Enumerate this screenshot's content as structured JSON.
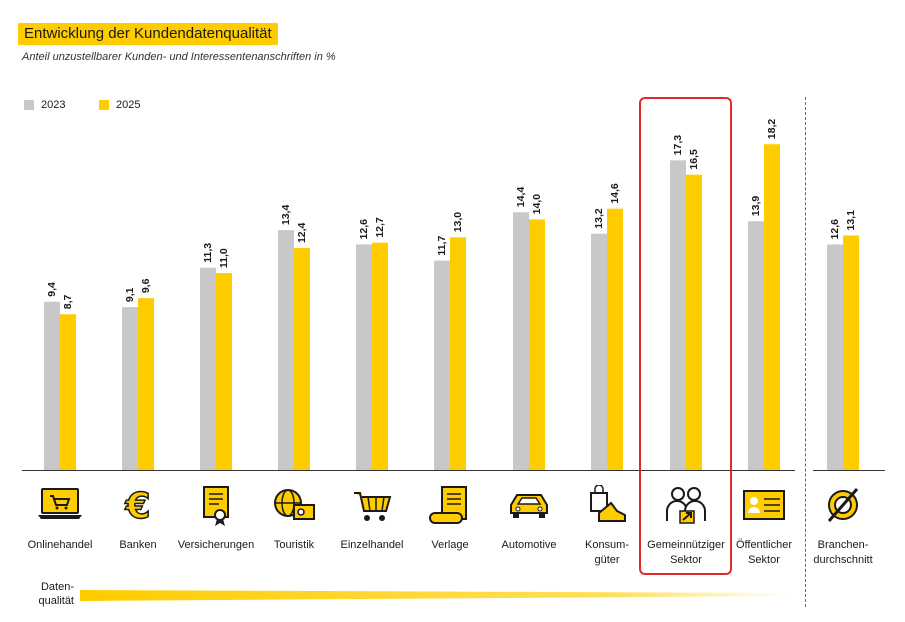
{
  "header": {
    "title": "Entwicklung der Kundendatenqualität",
    "subtitle": "Anteil unzustellbarer Kunden- und Interessentenanschriften in %"
  },
  "colors": {
    "y2023": "#c8c8c8",
    "y2025": "#ffcc00",
    "highlight": "#e32a2a"
  },
  "chart_data": {
    "type": "bar",
    "categories": [
      "Onlinehandel",
      "Banken",
      "Versicherungen",
      "Touristik",
      "Einzelhandel",
      "Verlage",
      "Automotive",
      "Konsumgüter",
      "Gemeinnütziger Sektor",
      "Öffentlicher Sektor",
      "Branchendurchschnitt"
    ],
    "series": [
      {
        "name": "2023",
        "values": [
          9.4,
          9.1,
          11.3,
          13.4,
          12.6,
          11.7,
          14.4,
          13.2,
          17.3,
          13.9,
          12.6
        ],
        "labels": [
          "9,4",
          "9,1",
          "11,3",
          "13,4",
          "12,6",
          "11,7",
          "14,4",
          "13,2",
          "17,3",
          "13,9",
          "12,6"
        ]
      },
      {
        "name": "2025",
        "values": [
          8.7,
          9.6,
          11.0,
          12.4,
          12.7,
          13.0,
          14.0,
          14.6,
          16.5,
          18.2,
          13.1
        ],
        "labels": [
          "8,7",
          "9,6",
          "11,0",
          "12,4",
          "12,7",
          "13,0",
          "14,0",
          "14,6",
          "16,5",
          "18,2",
          "13,1"
        ]
      }
    ],
    "ylim": [
      0,
      20
    ],
    "grid": false,
    "legend": "top-left",
    "highlighted_category": "Gemeinnütziger Sektor"
  },
  "category_display": [
    {
      "lines": [
        "Onlinehandel"
      ],
      "icon": "shopping-cart-laptop-icon"
    },
    {
      "lines": [
        "Banken"
      ],
      "icon": "euro-icon"
    },
    {
      "lines": [
        "Versicherungen"
      ],
      "icon": "certificate-icon"
    },
    {
      "lines": [
        "Touristik"
      ],
      "icon": "globe-ticket-icon"
    },
    {
      "lines": [
        "Einzelhandel"
      ],
      "icon": "shopping-basket-icon"
    },
    {
      "lines": [
        "Verlage"
      ],
      "icon": "newspaper-icon"
    },
    {
      "lines": [
        "Automotive"
      ],
      "icon": "car-icon"
    },
    {
      "lines": [
        "Konsum-",
        "güter"
      ],
      "icon": "shopping-bag-shoe-icon"
    },
    {
      "lines": [
        "Gemeinnütziger",
        "Sektor"
      ],
      "icon": "people-helping-icon"
    },
    {
      "lines": [
        "Öffentlicher",
        "Sektor"
      ],
      "icon": "id-card-icon"
    },
    {
      "lines": [
        "Branchen-",
        "durchschnitt"
      ],
      "icon": "average-icon"
    }
  ],
  "quality_axis": {
    "label_line1": "Daten-",
    "label_line2": "qualität"
  }
}
